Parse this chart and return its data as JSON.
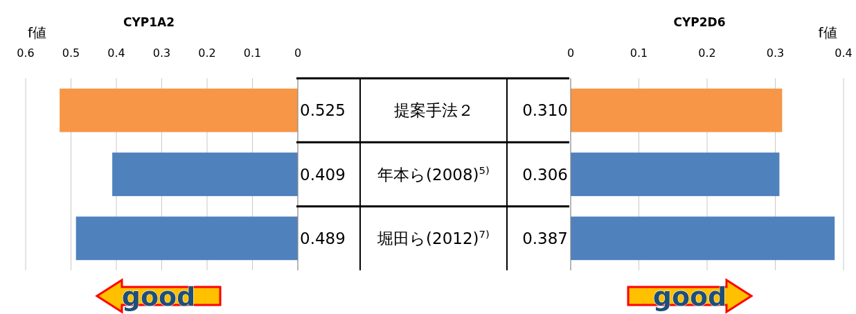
{
  "chart_data": [
    {
      "type": "bar",
      "orientation": "horizontal",
      "title": "CYP1A2",
      "xlabel": "f値",
      "categories": [
        "提案手法２",
        "年本ら(2008)$^{5)}$",
        "堀田ら(2012)$^{7)}$"
      ],
      "values": [
        0.525,
        0.409,
        0.489
      ],
      "value_labels": [
        "0.525",
        "0.409",
        "0.489"
      ],
      "colors": [
        "#f79646",
        "#4f81bd",
        "#4f81bd"
      ],
      "xlim": [
        0.6,
        0
      ],
      "xticks": [
        0.6,
        0.5,
        0.4,
        0.3,
        0.2,
        0.1,
        0
      ],
      "grid": "x",
      "annotations": [
        "good"
      ]
    },
    {
      "type": "bar",
      "orientation": "horizontal",
      "title": "CYP2D6",
      "xlabel": "f値",
      "categories": [
        null,
        null,
        null
      ],
      "values": [
        0.31,
        0.306,
        0.387
      ],
      "value_labels": [
        "0.310",
        "0.306",
        "0.387"
      ],
      "colors": [
        "#f79646",
        "#4f81bd",
        "#4f81bd"
      ],
      "xlim": [
        0,
        0.4
      ],
      "xticks": [
        0,
        0.1,
        0.2,
        0.3,
        0.4
      ],
      "grid": "x",
      "tick_labels": "x",
      "annotations": [
        "good"
      ]
    }
  ]
}
